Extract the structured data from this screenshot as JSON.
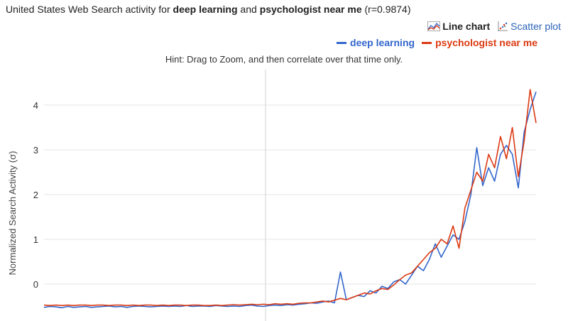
{
  "header": {
    "title_prefix": "United States Web Search activity for ",
    "term1": "deep learning",
    "title_and": " and ",
    "term2": "psychologist near me",
    "correlation": " (r=0.9874)"
  },
  "view_toggle": {
    "line_label": "Line chart",
    "scatter_label": "Scatter plot",
    "line_icon": "line-chart-icon",
    "scatter_icon": "scatter-plot-icon"
  },
  "hint": "Hint: Drag to Zoom, and then correlate over that time only.",
  "colors": {
    "series1": "#3366cc",
    "series2": "#dc3912",
    "grid": "#e6e6e6"
  },
  "chart_data": {
    "type": "line",
    "title": "",
    "ylabel": "Normalized Search Activity (σ)",
    "xlabel": "",
    "ylim": [
      -0.55,
      4.4
    ],
    "yticks": [
      "0",
      "1",
      "2",
      "3",
      "4"
    ],
    "grid": true,
    "legend_position": "top-right",
    "series": [
      {
        "name": "deep learning",
        "color": "#3366cc",
        "values": [
          -0.52,
          -0.5,
          -0.51,
          -0.53,
          -0.5,
          -0.52,
          -0.51,
          -0.5,
          -0.52,
          -0.51,
          -0.5,
          -0.49,
          -0.51,
          -0.5,
          -0.52,
          -0.5,
          -0.49,
          -0.5,
          -0.51,
          -0.5,
          -0.49,
          -0.5,
          -0.49,
          -0.5,
          -0.48,
          -0.5,
          -0.49,
          -0.49,
          -0.5,
          -0.48,
          -0.49,
          -0.5,
          -0.49,
          -0.5,
          -0.48,
          -0.47,
          -0.49,
          -0.5,
          -0.48,
          -0.47,
          -0.48,
          -0.46,
          -0.47,
          -0.45,
          -0.44,
          -0.42,
          -0.43,
          -0.4,
          -0.38,
          -0.42,
          0.27,
          -0.35,
          -0.3,
          -0.25,
          -0.28,
          -0.15,
          -0.2,
          -0.05,
          -0.1,
          0.05,
          0.1,
          0.0,
          0.2,
          0.4,
          0.3,
          0.55,
          0.9,
          0.6,
          0.85,
          1.1,
          1.0,
          1.4,
          2.0,
          3.05,
          2.2,
          2.6,
          2.3,
          2.9,
          3.1,
          2.9,
          2.15,
          3.4,
          3.9,
          4.3
        ]
      },
      {
        "name": "psychologist near me",
        "color": "#dc3912",
        "values": [
          -0.47,
          -0.48,
          -0.47,
          -0.48,
          -0.47,
          -0.48,
          -0.47,
          -0.47,
          -0.48,
          -0.47,
          -0.47,
          -0.48,
          -0.47,
          -0.47,
          -0.48,
          -0.47,
          -0.48,
          -0.47,
          -0.47,
          -0.48,
          -0.47,
          -0.48,
          -0.47,
          -0.47,
          -0.48,
          -0.47,
          -0.47,
          -0.48,
          -0.48,
          -0.47,
          -0.48,
          -0.47,
          -0.46,
          -0.47,
          -0.46,
          -0.45,
          -0.46,
          -0.45,
          -0.46,
          -0.44,
          -0.45,
          -0.44,
          -0.45,
          -0.43,
          -0.42,
          -0.42,
          -0.4,
          -0.38,
          -0.4,
          -0.36,
          -0.32,
          -0.35,
          -0.3,
          -0.25,
          -0.2,
          -0.22,
          -0.15,
          -0.1,
          -0.12,
          -0.02,
          0.1,
          0.2,
          0.25,
          0.4,
          0.55,
          0.7,
          0.8,
          1.0,
          0.9,
          1.3,
          0.8,
          1.7,
          2.1,
          2.5,
          2.3,
          2.9,
          2.6,
          3.3,
          2.8,
          3.5,
          2.4,
          3.2,
          4.35,
          3.6
        ]
      }
    ]
  }
}
